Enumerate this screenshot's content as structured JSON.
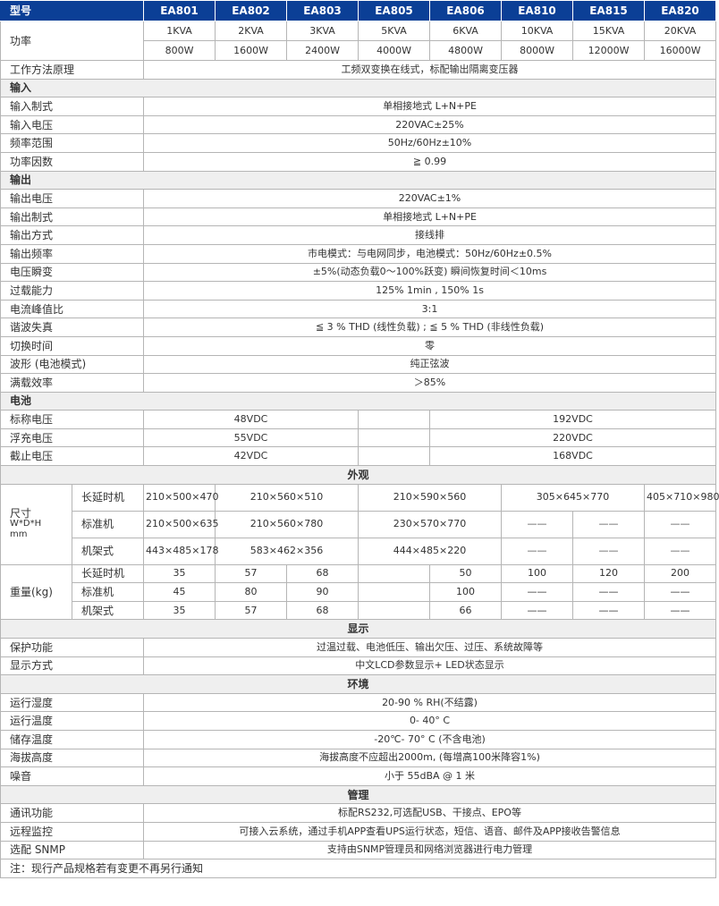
{
  "header": {
    "label": "型号",
    "models": [
      "EA801",
      "EA802",
      "EA803",
      "EA805",
      "EA806",
      "EA810",
      "EA815",
      "EA820"
    ]
  },
  "power": {
    "label": "功率",
    "kva": [
      "1KVA",
      "2KVA",
      "3KVA",
      "5KVA",
      "6KVA",
      "10KVA",
      "15KVA",
      "20KVA"
    ],
    "watts": [
      "800W",
      "1600W",
      "2400W",
      "4000W",
      "4800W",
      "8000W",
      "12000W",
      "16000W"
    ]
  },
  "principle": {
    "label": "工作方法原理",
    "value": "工频双变换在线式，标配输出隔离变压器"
  },
  "input": {
    "title": "输入",
    "rows": [
      {
        "label": "输入制式",
        "value": "单相接地式  L+N+PE"
      },
      {
        "label": "输入电压",
        "value": "220VAC±25%"
      },
      {
        "label": "频率范围",
        "value": "50Hz/60Hz±10%"
      },
      {
        "label": "功率因数",
        "value": "≧ 0.99"
      }
    ]
  },
  "output": {
    "title": "输出",
    "rows": [
      {
        "label": "输出电压",
        "value": "220VAC±1%"
      },
      {
        "label": "输出制式",
        "value": "单相接地式  L+N+PE"
      },
      {
        "label": "输出方式",
        "value": "接线排"
      },
      {
        "label": "输出频率",
        "value": "市电模式：与电网同步，电池模式：50Hz/60Hz±0.5%"
      },
      {
        "label": "电压瞬变",
        "value": "±5%(动态负载0～100%跃变) 瞬间恢复时间＜10ms"
      },
      {
        "label": "过载能力",
        "value": "125%  1min  ,  150%   1s"
      },
      {
        "label": "电流峰值比",
        "value": "3:1"
      },
      {
        "label": "谐波失真",
        "value": "≦ 3 % THD (线性负载) ; ≦ 5 % THD (非线性负载)"
      },
      {
        "label": "切换时间",
        "value": "零"
      },
      {
        "label": "波形 (电池模式)",
        "value": "纯正弦波"
      },
      {
        "label": "满载效率",
        "value": "＞85%"
      }
    ]
  },
  "battery": {
    "title": "电池",
    "rows": [
      {
        "label": "标称电压",
        "low": "48VDC",
        "high": "192VDC"
      },
      {
        "label": "浮充电压",
        "low": "55VDC",
        "high": "220VDC"
      },
      {
        "label": "截止电压",
        "low": "42VDC",
        "high": "168VDC"
      }
    ]
  },
  "appearance": {
    "title": "外观",
    "size_label": "尺寸",
    "size_sub": "W*D*H",
    "size_unit": "mm",
    "size_rows": [
      {
        "label": "长延时机",
        "values": [
          "210×500×470",
          "210×560×510",
          "210×590×560",
          "305×645×770",
          "405×710×980"
        ]
      },
      {
        "label": "标准机",
        "values": [
          "210×500×635",
          "210×560×780",
          "230×570×770",
          "——",
          "——",
          "——"
        ]
      },
      {
        "label": "机架式",
        "values": [
          "443×485×178",
          "583×462×356",
          "444×485×220",
          "——",
          "——",
          "——"
        ]
      }
    ],
    "weight_label": "重量(kg)",
    "weight_rows": [
      {
        "label": "长延时机",
        "values": [
          "35",
          "57",
          "68",
          "",
          "50",
          "100",
          "120",
          "200"
        ]
      },
      {
        "label": "标准机",
        "values": [
          "45",
          "80",
          "90",
          "",
          "100",
          "——",
          "——",
          "——"
        ]
      },
      {
        "label": "机架式",
        "values": [
          "35",
          "57",
          "68",
          "",
          "66",
          "——",
          "——",
          "——"
        ]
      }
    ]
  },
  "display": {
    "title": "显示",
    "rows": [
      {
        "label": "保护功能",
        "value": "过温过载、电池低压、输出欠压、过压、系统故障等"
      },
      {
        "label": "显示方式",
        "value": "中文LCD参数显示+ LED状态显示"
      }
    ]
  },
  "environment": {
    "title": "环境",
    "rows": [
      {
        "label": "运行湿度",
        "value": "20-90 % RH(不结露)"
      },
      {
        "label": "运行温度",
        "value": "0- 40° C"
      },
      {
        "label": "储存温度",
        "value": "-20℃- 70° C (不含电池)"
      },
      {
        "label": "海拔高度",
        "value": "海拔高度不应超出2000m, (每增高100米降容1%)"
      },
      {
        "label": "噪音",
        "value": "小于 55dBA @ 1 米"
      }
    ]
  },
  "management": {
    "title": "管理",
    "rows": [
      {
        "label": "通讯功能",
        "value": "标配RS232,可选配USB、干接点、EPO等"
      },
      {
        "label": "远程监控",
        "value": "可接入云系统，通过手机APP查看UPS运行状态，短信、语音、邮件及APP接收告警信息"
      },
      {
        "label": "选配 SNMP",
        "value": "支持由SNMP管理员和网络浏览器进行电力管理"
      }
    ]
  },
  "note": "注：现行产品规格若有变更不再另行通知",
  "colors": {
    "header_bg": "#0b3f96",
    "section_bg": "#efefef"
  }
}
